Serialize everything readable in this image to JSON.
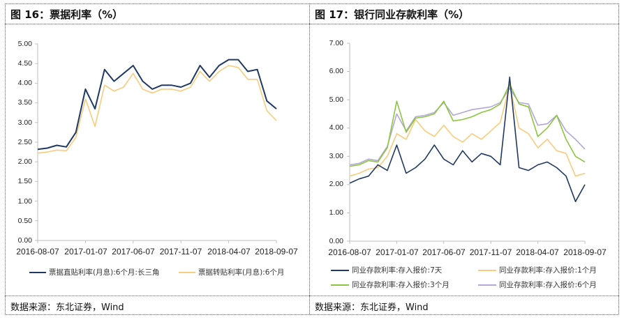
{
  "panels": [
    {
      "title": "图 16：票据利率（%）",
      "source": "数据来源：东北证券，Wind"
    },
    {
      "title": "图 17：银行同业存款利率（%）",
      "source": "数据来源：东北证券，Wind"
    }
  ],
  "colors": {
    "navy": "#1F3864",
    "orange": "#F9CB7C",
    "green": "#8CC63F",
    "purple": "#B4A7D6",
    "axis": "#BFBFBF"
  },
  "chart_data": [
    {
      "type": "line",
      "title": "图 16：票据利率（%）",
      "xlabel": "",
      "ylabel": "",
      "ylim": [
        0,
        5
      ],
      "yticks": [
        "0.00",
        "0.50",
        "1.00",
        "1.50",
        "2.00",
        "2.50",
        "3.00",
        "3.50",
        "4.00",
        "4.50",
        "5.00"
      ],
      "xticks": [
        "2016-08-07",
        "2017-01-07",
        "2017-06-07",
        "2017-11-07",
        "2018-04-07",
        "2018-09-07"
      ],
      "grid": false,
      "legend_position": "bottom",
      "x": [
        "2016-08",
        "2016-09",
        "2016-10",
        "2016-11",
        "2016-12",
        "2017-01",
        "2017-02",
        "2017-03",
        "2017-04",
        "2017-05",
        "2017-06",
        "2017-07",
        "2017-08",
        "2017-09",
        "2017-10",
        "2017-11",
        "2017-12",
        "2018-01",
        "2018-02",
        "2018-03",
        "2018-04",
        "2018-05",
        "2018-06",
        "2018-07",
        "2018-08",
        "2018-09"
      ],
      "series": [
        {
          "name": "票据直贴利率(月息):6个月:长三角",
          "color": "#1F3864",
          "values": [
            2.32,
            2.35,
            2.42,
            2.38,
            2.75,
            3.85,
            3.35,
            4.35,
            4.05,
            4.25,
            4.45,
            4.05,
            3.85,
            3.95,
            3.95,
            3.9,
            4.0,
            4.45,
            4.15,
            4.45,
            4.6,
            4.6,
            4.3,
            4.35,
            3.55,
            3.35
          ]
        },
        {
          "name": "票据转贴利率(月息):6个月",
          "color": "#F9CB7C",
          "values": [
            2.22,
            2.25,
            2.3,
            2.28,
            2.62,
            3.6,
            2.9,
            3.95,
            3.8,
            3.9,
            4.25,
            3.85,
            3.75,
            3.85,
            3.85,
            3.8,
            3.9,
            4.3,
            4.05,
            4.3,
            4.45,
            4.4,
            4.1,
            4.1,
            3.3,
            3.05
          ]
        }
      ]
    },
    {
      "type": "line",
      "title": "图 17：银行同业存款利率（%）",
      "xlabel": "",
      "ylabel": "",
      "ylim": [
        0,
        7
      ],
      "yticks": [
        "0.00",
        "1.00",
        "2.00",
        "3.00",
        "4.00",
        "5.00",
        "6.00",
        "7.00"
      ],
      "xticks": [
        "2016-08-07",
        "2017-01-07",
        "2017-06-07",
        "2017-11-07",
        "2018-04-07",
        "2018-09-07"
      ],
      "grid": false,
      "legend_position": "bottom",
      "x": [
        "2016-08",
        "2016-09",
        "2016-10",
        "2016-11",
        "2016-12",
        "2017-01",
        "2017-02",
        "2017-03",
        "2017-04",
        "2017-05",
        "2017-06",
        "2017-07",
        "2017-08",
        "2017-09",
        "2017-10",
        "2017-11",
        "2017-12",
        "2018-01",
        "2018-02",
        "2018-03",
        "2018-04",
        "2018-05",
        "2018-06",
        "2018-07",
        "2018-08",
        "2018-09"
      ],
      "series": [
        {
          "name": "同业存款利率:存入报价:7天",
          "color": "#1F3864",
          "values": [
            2.05,
            2.2,
            2.3,
            2.7,
            2.5,
            3.4,
            2.4,
            2.6,
            2.9,
            3.4,
            2.9,
            2.7,
            3.2,
            2.8,
            3.1,
            3.0,
            2.7,
            5.8,
            2.6,
            2.5,
            2.7,
            2.8,
            2.6,
            2.3,
            1.4,
            2.0
          ]
        },
        {
          "name": "同业存款利率:存入报价:1个月",
          "color": "#F9CB7C",
          "values": [
            2.3,
            2.4,
            2.55,
            2.6,
            3.0,
            3.8,
            3.6,
            4.3,
            3.9,
            3.7,
            4.1,
            3.7,
            3.5,
            3.8,
            3.6,
            3.9,
            4.2,
            5.5,
            4.0,
            3.8,
            3.3,
            3.6,
            3.2,
            3.1,
            2.3,
            2.4
          ]
        },
        {
          "name": "同业存款利率:存入报价:3个月",
          "color": "#8CC63F",
          "values": [
            2.65,
            2.7,
            2.85,
            2.8,
            3.3,
            4.95,
            3.85,
            4.35,
            4.4,
            4.5,
            4.95,
            4.25,
            4.3,
            4.4,
            4.55,
            4.65,
            4.85,
            5.55,
            4.85,
            4.75,
            3.7,
            4.0,
            4.45,
            3.6,
            3.0,
            2.8
          ]
        },
        {
          "name": "同业存款利率:存入报价:6个月",
          "color": "#B4A7D6",
          "values": [
            2.7,
            2.75,
            2.9,
            2.85,
            3.35,
            4.5,
            3.9,
            4.4,
            4.45,
            4.55,
            4.9,
            4.45,
            4.55,
            4.65,
            4.7,
            4.75,
            4.9,
            5.4,
            4.9,
            4.85,
            4.1,
            4.15,
            4.45,
            3.9,
            3.6,
            3.25
          ]
        }
      ]
    }
  ]
}
